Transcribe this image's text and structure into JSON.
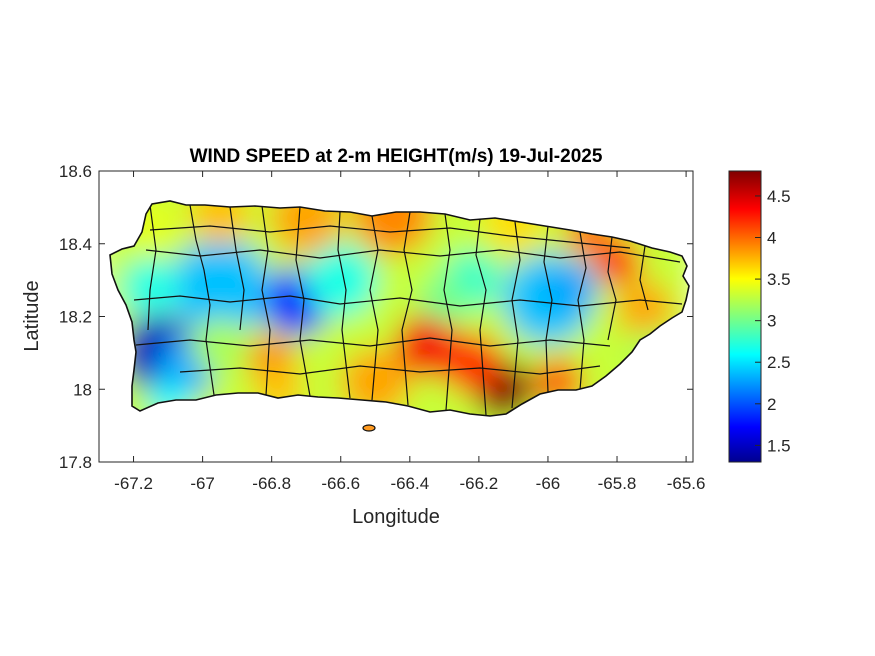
{
  "chart_data": {
    "type": "heatmap",
    "title": "WIND SPEED at 2-m HEIGHT(m/s) 19-Jul-2025",
    "xlabel": "Longitude",
    "ylabel": "Latitude",
    "xlim": [
      -67.3,
      -65.58
    ],
    "ylim": [
      17.8,
      18.6
    ],
    "xticks": [
      -67.2,
      -67,
      -66.8,
      -66.6,
      -66.4,
      -66.2,
      -66,
      -65.8,
      -65.6
    ],
    "xtick_labels": [
      "-67.2",
      "-67",
      "-66.8",
      "-66.6",
      "-66.4",
      "-66.2",
      "-66",
      "-65.8",
      "-65.6"
    ],
    "yticks": [
      17.8,
      18,
      18.2,
      18.4,
      18.6
    ],
    "ytick_labels": [
      "17.8",
      "18",
      "18.2",
      "18.4",
      "18.6"
    ],
    "colormap": "jet",
    "colorbar": {
      "range": [
        1.3,
        4.8
      ],
      "ticks": [
        1.5,
        2,
        2.5,
        3,
        3.5,
        4,
        4.5
      ],
      "tick_labels": [
        "1.5",
        "2",
        "2.5",
        "3",
        "3.5",
        "4",
        "4.5"
      ]
    },
    "grid": false,
    "hotspots": [
      {
        "name": "southwest low",
        "lon": -67.13,
        "lat": 18.1,
        "value": 1.5
      },
      {
        "name": "west-central low",
        "lon": -66.73,
        "lat": 18.24,
        "value": 1.8
      },
      {
        "name": "western interior low",
        "lon": -66.95,
        "lat": 18.28,
        "value": 2.4
      },
      {
        "name": "east-central low",
        "lon": -66.0,
        "lat": 18.25,
        "value": 2.4
      },
      {
        "name": "south-east coast high",
        "lon": -66.13,
        "lat": 18.0,
        "value": 4.8
      },
      {
        "name": "south-central high",
        "lon": -66.35,
        "lat": 18.12,
        "value": 4.4
      },
      {
        "name": "north-east coast high",
        "lon": -65.8,
        "lat": 18.35,
        "value": 4.2
      }
    ]
  }
}
